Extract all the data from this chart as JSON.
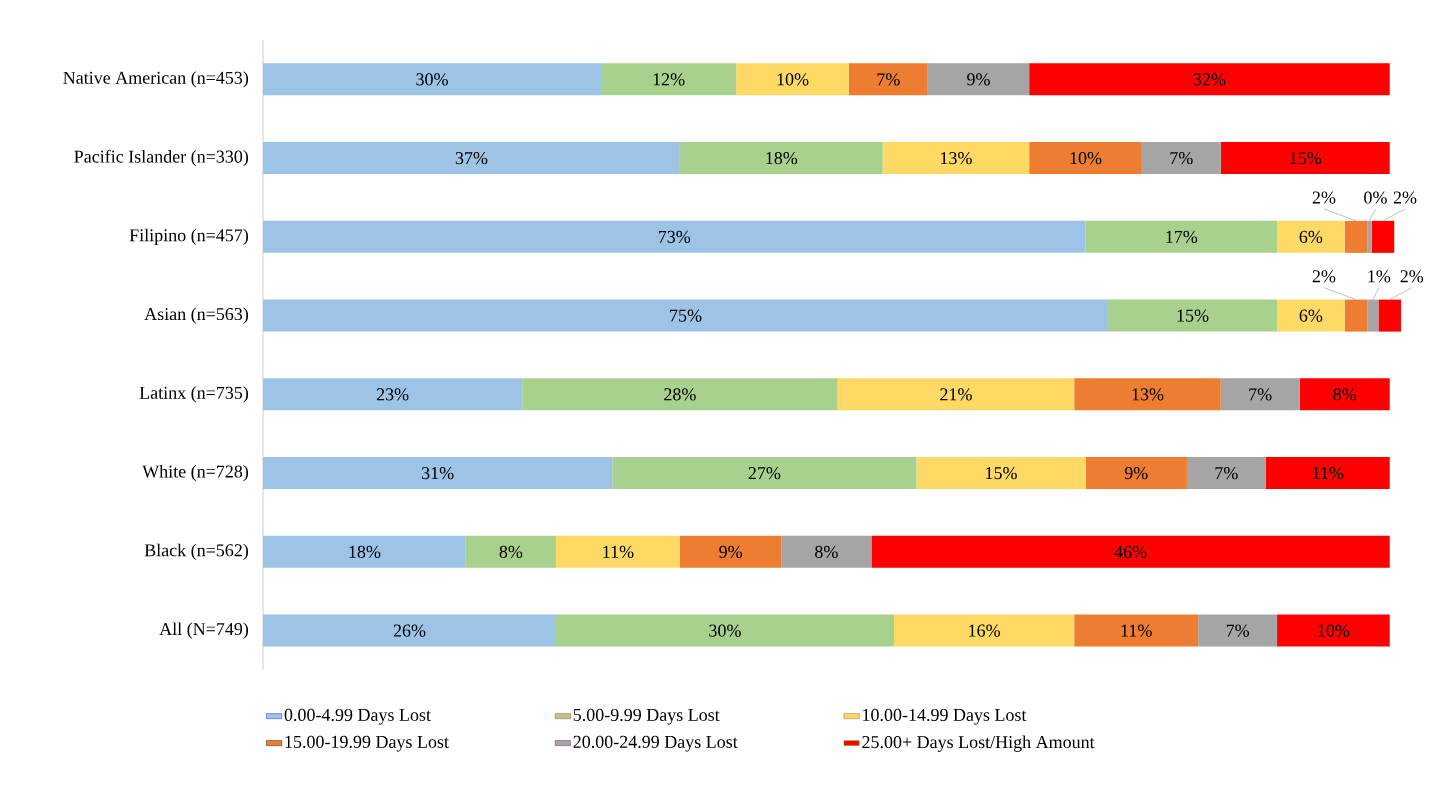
{
  "chart_data": {
    "type": "bar",
    "orientation": "horizontal",
    "stacked": true,
    "legend": "bottom",
    "tick_labels": "y",
    "xlim": [
      0,
      101
    ],
    "categories": [
      "Native American (n=453)",
      "Pacific Islander (n=330)",
      "Filipino (n=457)",
      "Asian (n=563)",
      "Latinx (n=735)",
      "White (n=728)",
      "Black (n=562)",
      "All (N=749)"
    ],
    "series": [
      {
        "name": "0.00-4.99 Days Lost",
        "color": "#9dc3e6",
        "values": [
          30,
          37,
          73,
          75,
          23,
          31,
          18,
          26
        ],
        "value_labels": [
          "30%",
          "37%",
          "73%",
          "75%",
          "23%",
          "31%",
          "18%",
          "26%"
        ]
      },
      {
        "name": "5.00-9.99 Days Lost",
        "color": "#a9d18e",
        "values": [
          12,
          18,
          17,
          15,
          28,
          27,
          8,
          30
        ],
        "value_labels": [
          "12%",
          "18%",
          "17%",
          "15%",
          "28%",
          "27%",
          "8%",
          "30%"
        ]
      },
      {
        "name": "10.00-14.99 Days Lost",
        "color": "#ffd966",
        "values": [
          10,
          13,
          6,
          6,
          21,
          15,
          11,
          16
        ],
        "value_labels": [
          "10%",
          "13%",
          "6%",
          "6%",
          "21%",
          "15%",
          "11%",
          "16%"
        ]
      },
      {
        "name": "15.00-19.99 Days Lost",
        "color": "#ed7d31",
        "values": [
          7,
          10,
          2,
          2,
          13,
          9,
          9,
          11
        ],
        "value_labels": [
          "7%",
          "10%",
          "2%",
          "2%",
          "13%",
          "9%",
          "9%",
          "11%"
        ]
      },
      {
        "name": "20.00-24.99 Days Lost",
        "color": "#a5a5a5",
        "values": [
          9,
          7,
          0.4,
          1,
          7,
          7,
          8,
          7
        ],
        "value_labels": [
          "9%",
          "7%",
          "0%",
          "1%",
          "7%",
          "7%",
          "8%",
          "7%"
        ]
      },
      {
        "name": "25.00+  Days Lost/High Amount",
        "color": "#ff0000",
        "values": [
          32,
          15,
          2,
          2,
          8,
          11,
          46,
          10
        ],
        "value_labels": [
          "32%",
          "15%",
          "2%",
          "2%",
          "8%",
          "11%",
          "46%",
          "10%"
        ]
      }
    ]
  }
}
